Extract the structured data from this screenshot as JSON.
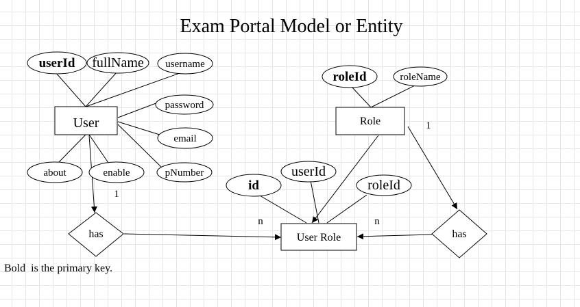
{
  "title": "Exam Portal  Model or Entity",
  "note": "Bold  is the primary key.",
  "entities": {
    "user": "User",
    "role": "Role",
    "user_role": "User Role"
  },
  "user_attributes": {
    "userId": "userId",
    "fullName": "fullName",
    "username": "username",
    "password": "password",
    "email": "email",
    "pNumber": "pNumber",
    "about": "about",
    "enable": "enable"
  },
  "role_attributes": {
    "roleId": "roleId",
    "roleName": "roleName"
  },
  "user_role_attributes": {
    "id": "id",
    "userId": "userId",
    "roleId": "roleId"
  },
  "relationships": {
    "left": "has",
    "right": "has"
  },
  "cardinalities": {
    "user_side": "1",
    "role_side": "1",
    "user_role_left": "n",
    "user_role_right": "n"
  },
  "colors": {
    "line": "#000000",
    "grid": "#e6e6e6"
  }
}
